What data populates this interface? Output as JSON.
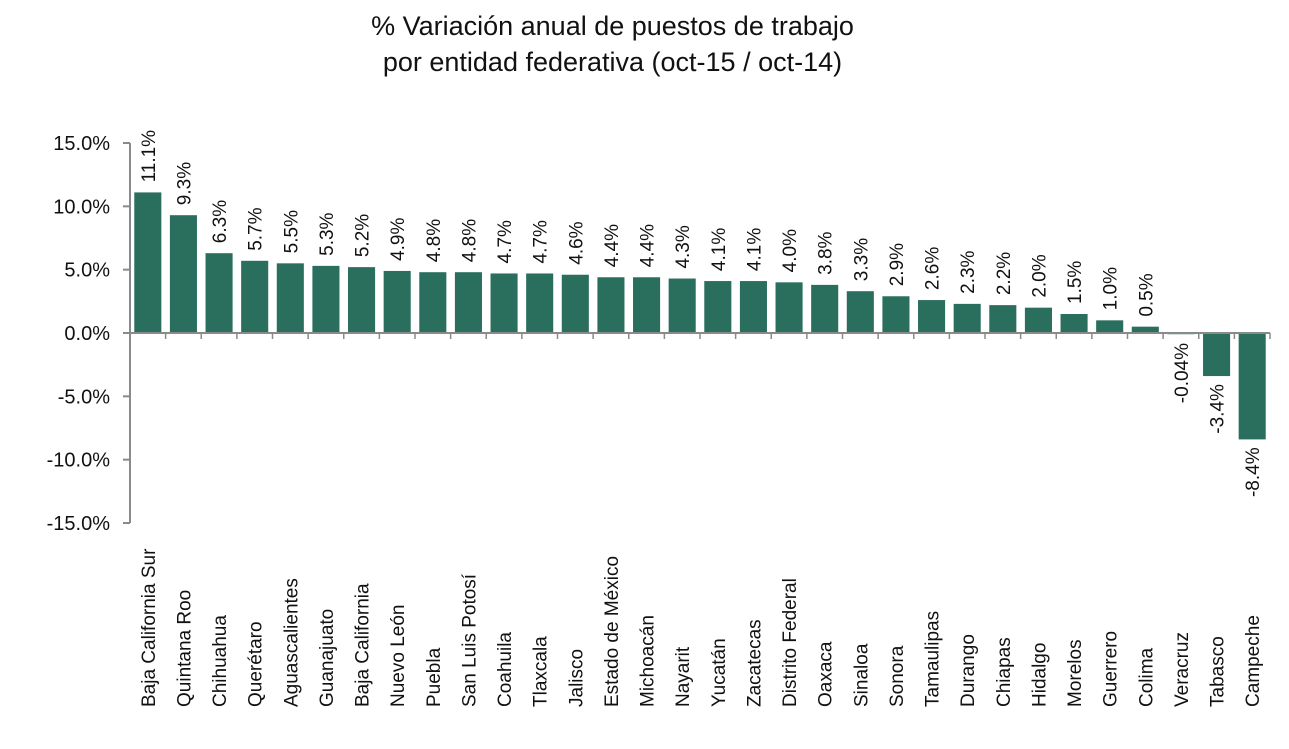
{
  "chart_data": {
    "type": "bar",
    "title_lines": [
      "% Variación anual de puestos de trabajo",
      "por entidad federativa (oct-15 / oct-14)"
    ],
    "xlabel": "",
    "ylabel": "",
    "ylim": [
      -15,
      15
    ],
    "yticks": [
      15,
      10,
      5,
      0,
      -5,
      -10,
      -15
    ],
    "ytick_labels": [
      "15.0%",
      "10.0%",
      "5.0%",
      "0.0%",
      "-5.0%",
      "-10.0%",
      "-15.0%"
    ],
    "grid": false,
    "legend": "none",
    "bar_color": "#2a6e5e",
    "categories": [
      "Baja California Sur",
      "Quintana Roo",
      "Chihuahua",
      "Querétaro",
      "Aguascalientes",
      "Guanajuato",
      "Baja California",
      "Nuevo León",
      "Puebla",
      "San Luis Potosí",
      "Coahuila",
      "Tlaxcala",
      "Jalisco",
      "Estado de México",
      "Michoacán",
      "Nayarit",
      "Yucatán",
      "Zacatecas",
      "Distrito Federal",
      "Oaxaca",
      "Sinaloa",
      "Sonora",
      "Tamaulipas",
      "Durango",
      "Chiapas",
      "Hidalgo",
      "Morelos",
      "Guerrero",
      "Colima",
      "Veracruz",
      "Tabasco",
      "Campeche"
    ],
    "values": [
      11.1,
      9.3,
      6.3,
      5.7,
      5.5,
      5.3,
      5.2,
      4.9,
      4.8,
      4.8,
      4.7,
      4.7,
      4.6,
      4.4,
      4.4,
      4.3,
      4.1,
      4.1,
      4.0,
      3.8,
      3.3,
      2.9,
      2.6,
      2.3,
      2.2,
      2.0,
      1.5,
      1.0,
      0.5,
      -0.04,
      -3.4,
      -8.4
    ],
    "value_labels": [
      "11.1%",
      "9.3%",
      "6.3%",
      "5.7%",
      "5.5%",
      "5.3%",
      "5.2%",
      "4.9%",
      "4.8%",
      "4.8%",
      "4.7%",
      "4.7%",
      "4.6%",
      "4.4%",
      "4.4%",
      "4.3%",
      "4.1%",
      "4.1%",
      "4.0%",
      "3.8%",
      "3.3%",
      "2.9%",
      "2.6%",
      "2.3%",
      "2.2%",
      "2.0%",
      "1.5%",
      "1.0%",
      "0.5%",
      "-0.04%",
      "-3.4%",
      "-8.4%"
    ]
  }
}
